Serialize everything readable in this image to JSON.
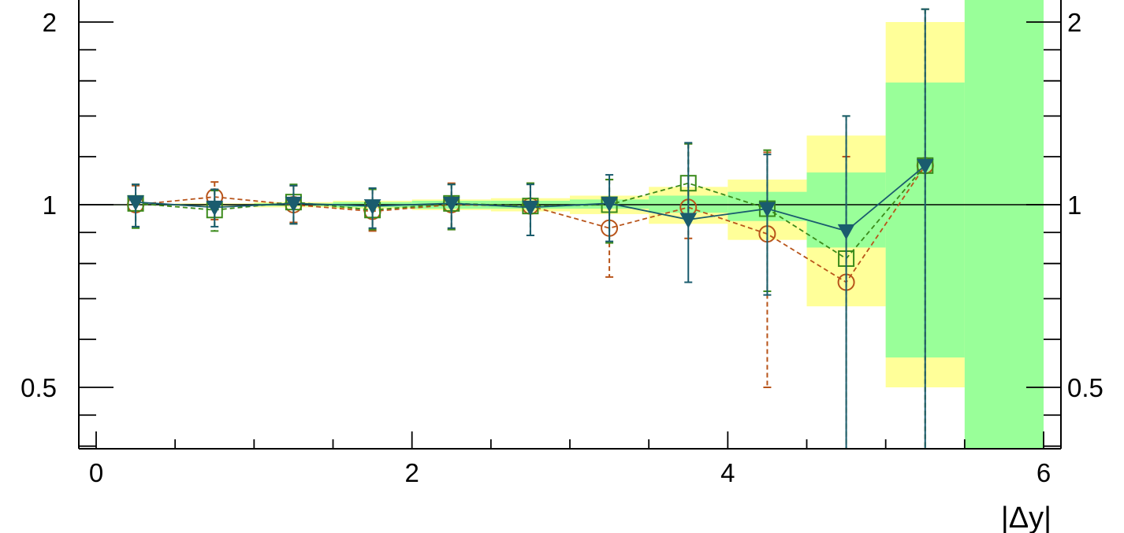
{
  "chart_data": {
    "type": "line",
    "xlabel": "|Δy|",
    "ylabel": "",
    "xlim": [
      -0.05,
      6.1
    ],
    "ylim": [
      0.37,
      2.1
    ],
    "y_scale": "log",
    "x_ticks": [
      0,
      2,
      4,
      6
    ],
    "x_tick_labels": [
      "0",
      "2",
      "4",
      "6"
    ],
    "y_ticks": [
      0.5,
      1,
      2
    ],
    "y_tick_labels": [
      "0.5",
      "1",
      "2"
    ],
    "y_tick_labels_right": [
      "0.5",
      "1",
      "2"
    ],
    "reference_line": 1,
    "bands": {
      "edges": [
        0,
        0.5,
        1,
        1.5,
        2,
        2.5,
        3,
        3.5,
        4,
        4.5,
        5,
        5.5,
        6
      ],
      "outer": {
        "color": "#ffff99",
        "low": [
          1.0,
          0.995,
          0.99,
          0.985,
          0.98,
          0.975,
          0.965,
          0.93,
          0.875,
          0.68,
          0.5,
          0.5
        ],
        "high": [
          1.0,
          1.005,
          1.01,
          1.015,
          1.02,
          1.025,
          1.035,
          1.07,
          1.1,
          1.3,
          2.0,
          2.2
        ]
      },
      "inner": {
        "color": "#99ff99",
        "low": [
          1.0,
          0.998,
          0.995,
          0.99,
          0.985,
          0.985,
          0.985,
          0.97,
          0.94,
          0.85,
          0.56,
          0.3
        ],
        "high": [
          1.0,
          1.002,
          1.005,
          1.01,
          1.015,
          1.015,
          1.02,
          1.035,
          1.05,
          1.13,
          1.59,
          2.2
        ]
      }
    },
    "series": [
      {
        "marker": "circle",
        "color": "#b8541a",
        "line_style": "dashed",
        "x": [
          0.25,
          0.75,
          1.25,
          1.75,
          2.25,
          2.75,
          3.25,
          3.75,
          4.25,
          4.75,
          5.25
        ],
        "y": [
          1.0,
          1.03,
          1.0,
          0.975,
          1.0,
          0.995,
          0.915,
          0.99,
          0.895,
          0.745,
          1.16
        ],
        "err_low": [
          0.92,
          0.945,
          0.935,
          0.905,
          0.91,
          0.89,
          0.76,
          0.88,
          0.5,
          0.37,
          0.37
        ],
        "err_high": [
          1.075,
          1.09,
          1.075,
          1.06,
          1.085,
          1.085,
          1.1,
          1.26,
          1.22,
          1.2,
          2.1
        ]
      },
      {
        "marker": "square",
        "color": "#3a8a1a",
        "line_style": "dashed",
        "x": [
          0.25,
          0.75,
          1.25,
          1.75,
          2.25,
          2.75,
          3.25,
          3.75,
          4.25,
          4.75,
          5.25
        ],
        "y": [
          1.005,
          0.98,
          1.01,
          0.98,
          1.005,
          0.995,
          1.0,
          1.085,
          0.985,
          0.815,
          1.16
        ],
        "err_low": [
          0.915,
          0.905,
          0.93,
          0.91,
          0.91,
          0.89,
          0.865,
          0.955,
          0.72,
          0.37,
          0.37
        ],
        "err_high": [
          1.08,
          1.055,
          1.08,
          1.06,
          1.08,
          1.085,
          1.1,
          1.26,
          1.23,
          1.4,
          2.1
        ]
      },
      {
        "marker": "triangle-down",
        "color": "#1a5c6e",
        "line_style": "solid",
        "x": [
          0.25,
          0.75,
          1.25,
          1.75,
          2.25,
          2.75,
          3.25,
          3.75,
          4.25,
          4.75,
          5.25
        ],
        "y": [
          1.01,
          0.99,
          1.005,
          0.995,
          1.005,
          0.99,
          1.005,
          0.945,
          0.985,
          0.905,
          1.16
        ],
        "err_low": [
          0.92,
          0.92,
          0.93,
          0.915,
          0.915,
          0.89,
          0.87,
          0.745,
          0.71,
          0.37,
          0.37
        ],
        "err_high": [
          1.08,
          1.06,
          1.075,
          1.065,
          1.08,
          1.08,
          1.12,
          1.265,
          1.21,
          1.4,
          2.1
        ]
      }
    ]
  }
}
